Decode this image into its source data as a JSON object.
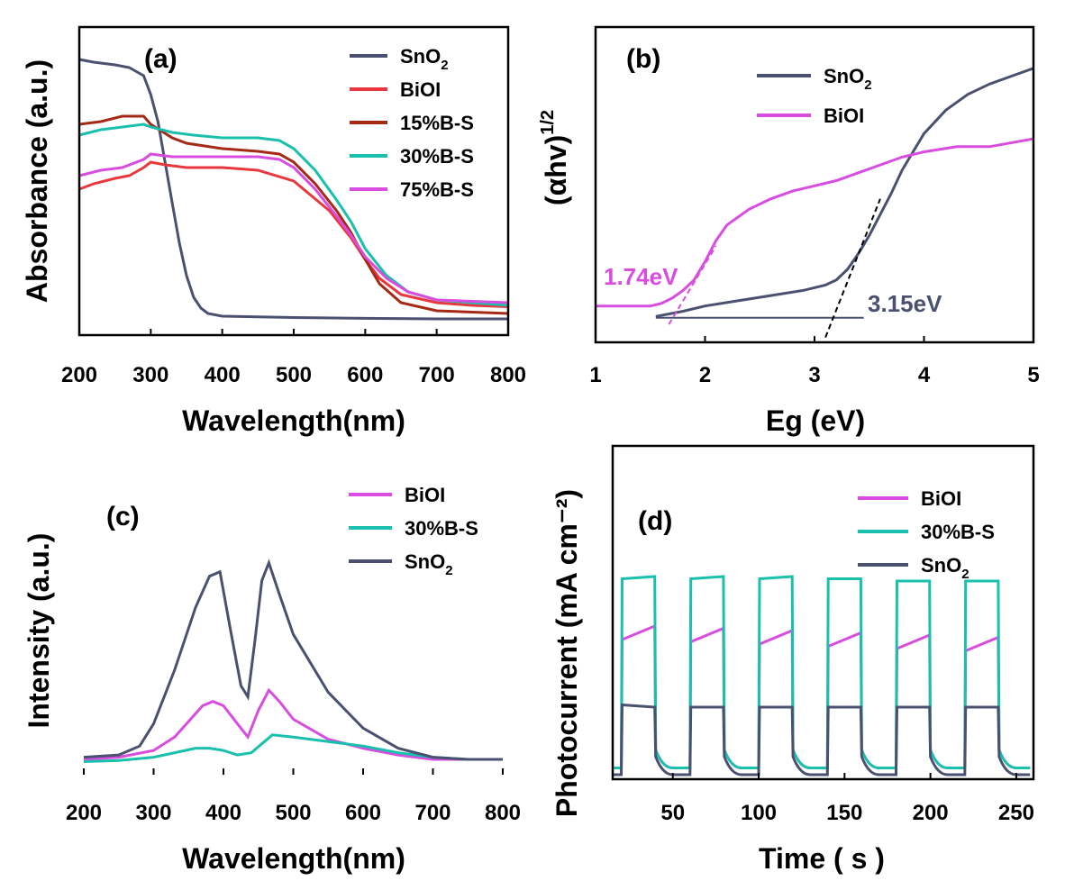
{
  "colors": {
    "SnO2": "#4a5070",
    "BiOI_a": "#e8383d",
    "BiOI": "#d94ce0",
    "15%B-S": "#a52a16",
    "30%B-S": "#19c0ac",
    "75%B-S": "#d94ce0",
    "fit": "#000000",
    "axis": "#000000"
  },
  "chart_data": [
    {
      "panel": "a",
      "label": "(a)",
      "type": "line",
      "xlabel": "Wavelength(nm)",
      "ylabel": "Absorbance (a.u.)",
      "xlim": [
        200,
        800
      ],
      "ylim": [
        0,
        1.0
      ],
      "xticks": [
        "200",
        "300",
        "400",
        "500",
        "600",
        "700",
        "800"
      ],
      "legend_position": "top-right",
      "series": [
        {
          "name": "SnO2",
          "label_main": "SnO",
          "label_sub": "2",
          "color_key": "SnO2",
          "x": [
            200,
            220,
            250,
            270,
            290,
            300,
            310,
            320,
            330,
            340,
            350,
            360,
            370,
            380,
            400,
            500,
            600,
            700,
            800
          ],
          "y": [
            0.98,
            0.97,
            0.96,
            0.95,
            0.92,
            0.85,
            0.75,
            0.6,
            0.45,
            0.3,
            0.18,
            0.1,
            0.06,
            0.04,
            0.03,
            0.025,
            0.022,
            0.02,
            0.02
          ]
        },
        {
          "name": "BiOI",
          "label_main": "BiOI",
          "label_sub": "",
          "color_key": "BiOI_a",
          "x": [
            200,
            220,
            250,
            270,
            290,
            300,
            320,
            350,
            400,
            450,
            500,
            550,
            580,
            600,
            620,
            650,
            700,
            750,
            800
          ],
          "y": [
            0.5,
            0.52,
            0.54,
            0.55,
            0.58,
            0.6,
            0.59,
            0.58,
            0.58,
            0.57,
            0.53,
            0.42,
            0.32,
            0.24,
            0.17,
            0.11,
            0.08,
            0.07,
            0.065
          ]
        },
        {
          "name": "15%B-S",
          "label_main": "15%B-S",
          "label_sub": "",
          "color_key": "15%B-S",
          "x": [
            200,
            230,
            260,
            290,
            300,
            330,
            350,
            400,
            450,
            480,
            500,
            530,
            560,
            580,
            600,
            620,
            650,
            700,
            750,
            800
          ],
          "y": [
            0.74,
            0.75,
            0.77,
            0.77,
            0.74,
            0.69,
            0.67,
            0.65,
            0.64,
            0.63,
            0.6,
            0.52,
            0.42,
            0.34,
            0.24,
            0.15,
            0.08,
            0.05,
            0.045,
            0.04
          ]
        },
        {
          "name": "30%B-S",
          "label_main": "30%B-S",
          "label_sub": "",
          "color_key": "30%B-S",
          "x": [
            200,
            230,
            260,
            290,
            300,
            330,
            360,
            400,
            450,
            480,
            500,
            530,
            560,
            580,
            600,
            630,
            660,
            700,
            750,
            800
          ],
          "y": [
            0.7,
            0.72,
            0.73,
            0.74,
            0.73,
            0.71,
            0.7,
            0.69,
            0.69,
            0.68,
            0.65,
            0.57,
            0.46,
            0.38,
            0.28,
            0.18,
            0.12,
            0.09,
            0.08,
            0.07
          ]
        },
        {
          "name": "75%B-S",
          "label_main": "75%B-S",
          "label_sub": "",
          "color_key": "75%B-S",
          "x": [
            200,
            230,
            260,
            290,
            300,
            330,
            360,
            400,
            450,
            480,
            500,
            530,
            560,
            580,
            600,
            630,
            660,
            700,
            750,
            800
          ],
          "y": [
            0.55,
            0.57,
            0.58,
            0.61,
            0.63,
            0.62,
            0.62,
            0.62,
            0.62,
            0.61,
            0.58,
            0.5,
            0.4,
            0.33,
            0.25,
            0.17,
            0.12,
            0.09,
            0.085,
            0.08
          ]
        }
      ]
    },
    {
      "panel": "b",
      "label": "(b)",
      "type": "line",
      "xlabel": "Eg (eV)",
      "ylabel_main": "(αhv)",
      "ylabel_sup": "1/2",
      "xlim": [
        1,
        5
      ],
      "ylim": [
        0,
        1.0
      ],
      "xticks": [
        "1",
        "2",
        "3",
        "4",
        "5"
      ],
      "legend_position": "top-center",
      "annotations": [
        "1.74eV",
        "3.15eV"
      ],
      "series": [
        {
          "name": "SnO2",
          "label_main": "SnO",
          "label_sub": "2",
          "color_key": "SnO2",
          "x": [
            1.55,
            1.8,
            2.0,
            2.3,
            2.6,
            2.9,
            3.1,
            3.2,
            3.3,
            3.4,
            3.5,
            3.6,
            3.7,
            3.8,
            3.9,
            4.0,
            4.2,
            4.4,
            4.6,
            4.8,
            5.0
          ],
          "y": [
            0.03,
            0.05,
            0.07,
            0.09,
            0.11,
            0.13,
            0.15,
            0.17,
            0.21,
            0.27,
            0.34,
            0.42,
            0.5,
            0.59,
            0.66,
            0.73,
            0.82,
            0.88,
            0.92,
            0.95,
            0.98
          ]
        },
        {
          "name": "BiOI",
          "label_main": "BiOI",
          "label_sub": "",
          "color_key": "BiOI",
          "x": [
            1.0,
            1.5,
            1.6,
            1.7,
            1.8,
            1.9,
            2.0,
            2.1,
            2.2,
            2.4,
            2.6,
            2.8,
            3.0,
            3.2,
            3.4,
            3.6,
            3.8,
            4.0,
            4.3,
            4.6,
            5.0
          ],
          "y": [
            0.07,
            0.07,
            0.08,
            0.1,
            0.13,
            0.17,
            0.24,
            0.32,
            0.38,
            0.44,
            0.48,
            0.51,
            0.53,
            0.55,
            0.58,
            0.61,
            0.64,
            0.66,
            0.68,
            0.68,
            0.71
          ]
        }
      ]
    },
    {
      "panel": "c",
      "label": "(c)",
      "type": "line",
      "xlabel": "Wavelength(nm)",
      "ylabel": "Intensity (a.u.)",
      "xlim": [
        200,
        800
      ],
      "ylim": [
        0,
        1.0
      ],
      "xticks": [
        "200",
        "300",
        "400",
        "500",
        "600",
        "700",
        "800"
      ],
      "legend_position": "top-right",
      "series": [
        {
          "name": "BiOI",
          "label_main": "BiOI",
          "label_sub": "",
          "color_key": "BiOI",
          "x": [
            200,
            250,
            300,
            330,
            350,
            370,
            385,
            400,
            420,
            435,
            450,
            465,
            480,
            500,
            550,
            600,
            650,
            700,
            750,
            800
          ],
          "y": [
            0.02,
            0.03,
            0.06,
            0.12,
            0.19,
            0.26,
            0.28,
            0.26,
            0.18,
            0.12,
            0.24,
            0.33,
            0.28,
            0.2,
            0.11,
            0.07,
            0.04,
            0.02,
            0.02,
            0.02
          ]
        },
        {
          "name": "30%B-S",
          "label_main": "30%B-S",
          "label_sub": "",
          "color_key": "30%B-S",
          "x": [
            200,
            250,
            300,
            330,
            360,
            380,
            400,
            420,
            440,
            455,
            470,
            500,
            550,
            600,
            650,
            700,
            750,
            800
          ],
          "y": [
            0.01,
            0.015,
            0.03,
            0.05,
            0.07,
            0.07,
            0.06,
            0.04,
            0.05,
            0.09,
            0.13,
            0.12,
            0.1,
            0.08,
            0.05,
            0.03,
            0.02,
            0.02
          ]
        },
        {
          "name": "SnO2",
          "label_main": "SnO",
          "label_sub": "2",
          "color_key": "SnO2",
          "x": [
            200,
            250,
            280,
            300,
            330,
            360,
            380,
            395,
            410,
            425,
            435,
            445,
            455,
            465,
            480,
            500,
            550,
            600,
            650,
            700,
            750,
            800
          ],
          "y": [
            0.03,
            0.04,
            0.08,
            0.18,
            0.42,
            0.7,
            0.84,
            0.86,
            0.6,
            0.35,
            0.3,
            0.55,
            0.82,
            0.9,
            0.76,
            0.58,
            0.32,
            0.16,
            0.07,
            0.03,
            0.02,
            0.02
          ]
        }
      ]
    },
    {
      "panel": "d",
      "label": "(d)",
      "type": "line",
      "xlabel": "Time ( s )",
      "ylabel": "Photocurrent (mA cm⁻²)",
      "xlim": [
        15,
        260
      ],
      "ylim": [
        0,
        1.0
      ],
      "xticks": [
        "50",
        "100",
        "150",
        "200",
        "250"
      ],
      "light_on_intervals": [
        [
          20,
          40
        ],
        [
          60,
          80
        ],
        [
          100,
          120
        ],
        [
          140,
          160
        ],
        [
          180,
          200
        ],
        [
          220,
          240
        ]
      ],
      "legend_position": "top-right",
      "series": [
        {
          "name": "BiOI",
          "label_main": "BiOI",
          "label_sub": "",
          "color_key": "BiOI",
          "on_start": [
            0.6,
            0.59,
            0.58,
            0.57,
            0.56,
            0.55
          ],
          "on_end": [
            0.66,
            0.65,
            0.64,
            0.63,
            0.62,
            0.61
          ],
          "dark": 0.03
        },
        {
          "name": "30%B-S",
          "label_main": "30%B-S",
          "label_sub": "",
          "color_key": "30%B-S",
          "on_start": [
            0.87,
            0.87,
            0.87,
            0.87,
            0.86,
            0.86
          ],
          "on_end": [
            0.88,
            0.88,
            0.88,
            0.87,
            0.86,
            0.86
          ],
          "dark": 0.03
        },
        {
          "name": "SnO2",
          "label_main": "SnO",
          "label_sub": "2",
          "color_key": "SnO2",
          "on_start": [
            0.31,
            0.3,
            0.3,
            0.3,
            0.3,
            0.3
          ],
          "on_end": [
            0.3,
            0.3,
            0.3,
            0.3,
            0.3,
            0.3
          ],
          "dark": 0.0
        }
      ]
    }
  ]
}
